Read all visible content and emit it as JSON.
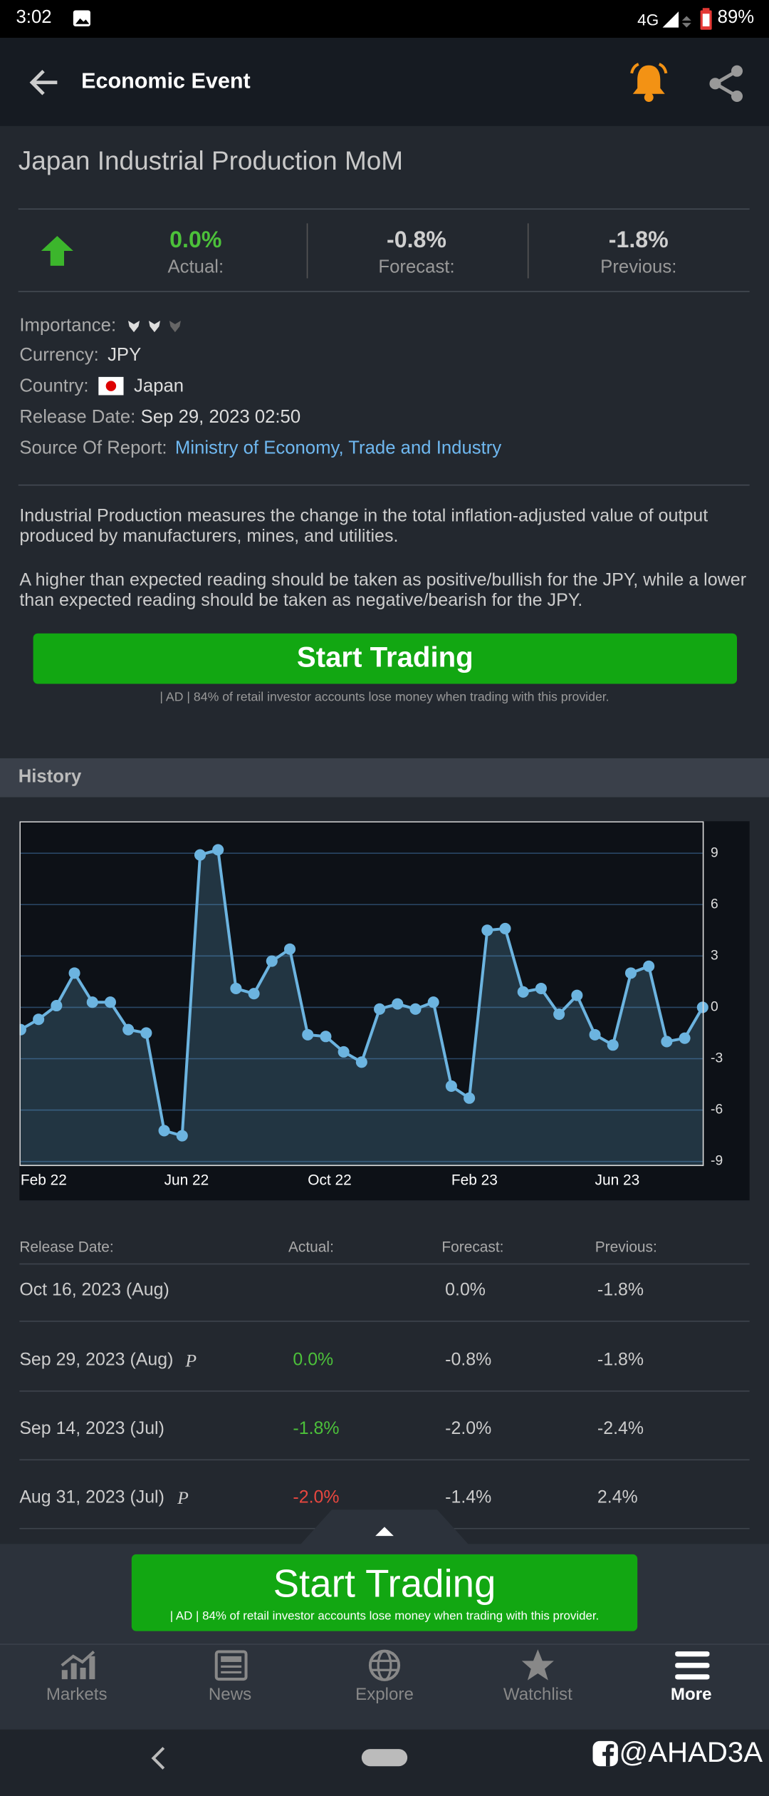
{
  "status_bar": {
    "time": "3:02",
    "network": "4G",
    "battery": "89%"
  },
  "header": {
    "title": "Economic Event"
  },
  "event": {
    "title": "Japan Industrial Production MoM",
    "stats": [
      {
        "value": "0.0%",
        "label": "Actual:",
        "color": "#4cc13a"
      },
      {
        "value": "-0.8%",
        "label": "Forecast:",
        "color": "#cfcfcf"
      },
      {
        "value": "-1.8%",
        "label": "Previous:",
        "color": "#cfcfcf"
      }
    ],
    "details": [
      {
        "label": "Importance:"
      },
      {
        "label": "Currency:",
        "value": "JPY"
      },
      {
        "label": "Country:",
        "value": "Japan",
        "flag": true
      },
      {
        "label": "Release Date:",
        "value": "Sep 29, 2023 02:50"
      },
      {
        "label": "Source Of Report:",
        "value": "Ministry of Economy, Trade and Industry",
        "link": true
      }
    ],
    "description": [
      "Industrial Production measures the change in the total inflation-adjusted value of output produced by manufacturers, mines, and utilities.",
      "A higher than expected reading should be taken as positive/bullish for the JPY, while a lower than expected reading should be taken as negative/bearish for the JPY."
    ]
  },
  "cta": {
    "button": "Start Trading",
    "disclaimer": "| AD | 84% of retail investor accounts lose money when trading with this provider."
  },
  "history": {
    "title": "History"
  },
  "chart_data": {
    "type": "line",
    "categories": [
      "Feb 22",
      null,
      null,
      null,
      null,
      null,
      null,
      null,
      "Jun 22",
      null,
      null,
      null,
      null,
      null,
      null,
      null,
      "Oct 22",
      null,
      null,
      null,
      null,
      null,
      null,
      null,
      "Feb 23",
      null,
      null,
      null,
      null,
      null,
      null,
      null,
      "Jun 23",
      null,
      null,
      null,
      null,
      null,
      null
    ],
    "values": [
      -1.3,
      -0.7,
      0.1,
      2.0,
      0.3,
      0.3,
      -1.3,
      -1.5,
      -7.2,
      -7.5,
      8.9,
      9.2,
      1.1,
      0.8,
      2.7,
      3.4,
      -1.6,
      -1.7,
      -2.6,
      -3.2,
      -0.1,
      0.2,
      -0.1,
      0.3,
      -4.6,
      -5.3,
      4.5,
      4.6,
      0.9,
      1.1,
      -0.4,
      0.7,
      -1.6,
      -2.2,
      2.0,
      2.4,
      -2.0,
      -1.8,
      0.0
    ],
    "color": "#6cb4e0",
    "ylim": [
      -9.2,
      10.8
    ],
    "yticks": [
      -9,
      -6,
      -3,
      0,
      3,
      6,
      9
    ],
    "grid": true,
    "y_axis_side": "right"
  },
  "table": {
    "headers": [
      "Release Date:",
      "Actual:",
      "Forecast:",
      "Previous:"
    ],
    "rows": [
      {
        "date": "Oct 16, 2023 (Aug)",
        "forecast": "0.0%",
        "previous": "-1.8%"
      },
      {
        "date": "Sep 29, 2023 (Aug)",
        "marker": "P",
        "actual": "0.0%",
        "actual_color": "#4cc13a",
        "forecast": "-0.8%",
        "previous": "-1.8%"
      },
      {
        "date": "Sep 14, 2023 (Jul)",
        "actual": "-1.8%",
        "actual_color": "#4cc13a",
        "forecast": "-2.0%",
        "previous": "-2.4%"
      },
      {
        "date": "Aug 31, 2023 (Jul)",
        "marker": "P",
        "actual": "-2.0%",
        "actual_color": "#e8473f",
        "forecast": "-1.4%",
        "previous": "2.4%"
      }
    ]
  },
  "ad_banner": {
    "button": "Start Trading",
    "disclaimer": "| AD | 84% of retail investor accounts lose money when trading with this provider."
  },
  "nav": {
    "items": [
      "Markets",
      "News",
      "Explore",
      "Watchlist",
      "More"
    ],
    "active": 4
  },
  "watermark": "@AHAD3A"
}
